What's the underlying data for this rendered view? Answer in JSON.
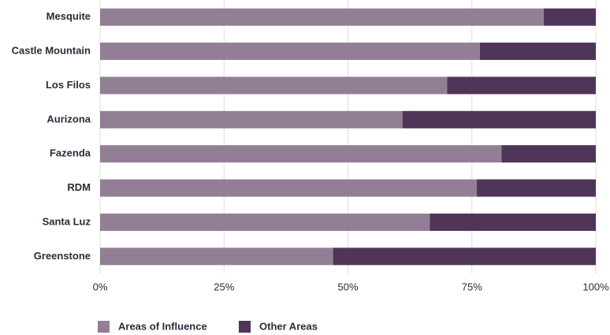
{
  "chart_data": {
    "type": "stacked-barh",
    "categories": [
      "Mesquite",
      "Castle Mountain",
      "Los Filos",
      "Aurizona",
      "Fazenda",
      "RDM",
      "Santa Luz",
      "Greenstone"
    ],
    "series": [
      {
        "name": "Areas of Influence",
        "color": "#937f95",
        "values": [
          89.5,
          76.6,
          70,
          61,
          81,
          76,
          66.5,
          47
        ]
      },
      {
        "name": "Other Areas",
        "color": "#4f3558",
        "values": [
          10.5,
          23.4,
          30,
          39,
          19,
          24,
          33.5,
          53
        ]
      }
    ],
    "xlim": [
      0,
      100
    ],
    "xticks": [
      {
        "value": 0,
        "label": "0%"
      },
      {
        "value": 25,
        "label": "25%"
      },
      {
        "value": 50,
        "label": "50%"
      },
      {
        "value": 75,
        "label": "75%"
      },
      {
        "value": 100,
        "label": "100%"
      }
    ],
    "grid": true
  }
}
